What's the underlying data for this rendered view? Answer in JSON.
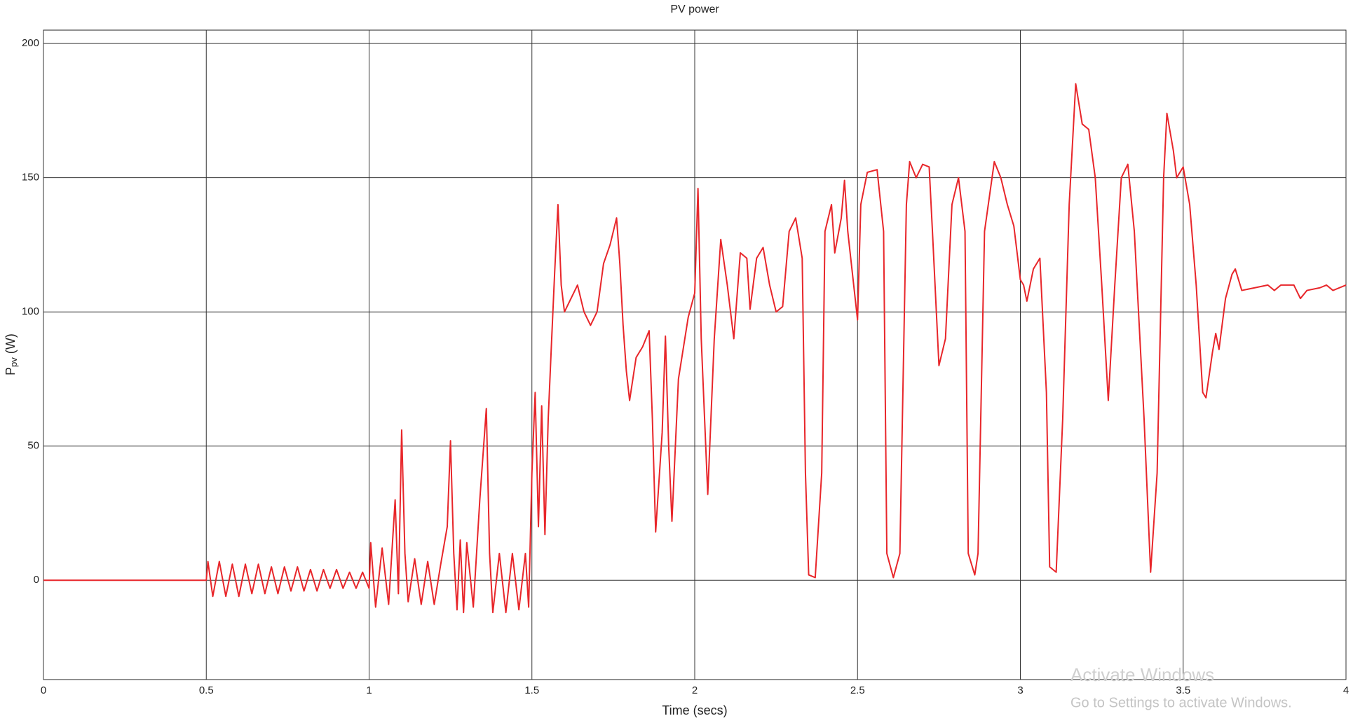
{
  "chart_data": {
    "type": "line",
    "title": "PV power",
    "xlabel": "Time (secs)",
    "ylabel": "P",
    "ylabel_subscript": "pv",
    "ylabel_unit": "(W)",
    "watermark": [
      "Activate Windows",
      "Go to Settings to activate Windows."
    ],
    "x": [
      0,
      0.5,
      0.505,
      0.52,
      0.54,
      0.56,
      0.58,
      0.6,
      0.62,
      0.64,
      0.66,
      0.68,
      0.7,
      0.72,
      0.74,
      0.76,
      0.78,
      0.8,
      0.82,
      0.84,
      0.86,
      0.88,
      0.9,
      0.92,
      0.94,
      0.96,
      0.98,
      1.0,
      1.005,
      1.02,
      1.04,
      1.06,
      1.08,
      1.09,
      1.1,
      1.11,
      1.12,
      1.14,
      1.16,
      1.18,
      1.2,
      1.22,
      1.24,
      1.25,
      1.26,
      1.27,
      1.28,
      1.29,
      1.3,
      1.32,
      1.34,
      1.36,
      1.37,
      1.38,
      1.4,
      1.42,
      1.44,
      1.46,
      1.48,
      1.49,
      1.5,
      1.51,
      1.52,
      1.53,
      1.54,
      1.55,
      1.56,
      1.57,
      1.58,
      1.59,
      1.6,
      1.62,
      1.64,
      1.66,
      1.68,
      1.7,
      1.72,
      1.74,
      1.76,
      1.77,
      1.78,
      1.79,
      1.8,
      1.82,
      1.84,
      1.86,
      1.87,
      1.88,
      1.9,
      1.91,
      1.92,
      1.93,
      1.95,
      1.98,
      2.0,
      2.01,
      2.02,
      2.04,
      2.06,
      2.08,
      2.1,
      2.12,
      2.14,
      2.16,
      2.17,
      2.19,
      2.21,
      2.23,
      2.25,
      2.27,
      2.29,
      2.31,
      2.33,
      2.34,
      2.35,
      2.37,
      2.39,
      2.4,
      2.42,
      2.43,
      2.45,
      2.46,
      2.47,
      2.49,
      2.5,
      2.51,
      2.53,
      2.56,
      2.58,
      2.59,
      2.61,
      2.63,
      2.65,
      2.66,
      2.68,
      2.7,
      2.72,
      2.73,
      2.75,
      2.77,
      2.79,
      2.81,
      2.83,
      2.84,
      2.86,
      2.87,
      2.89,
      2.92,
      2.94,
      2.96,
      2.98,
      3.0,
      3.01,
      3.02,
      3.04,
      3.06,
      3.08,
      3.09,
      3.11,
      3.13,
      3.15,
      3.17,
      3.19,
      3.21,
      3.23,
      3.25,
      3.27,
      3.29,
      3.31,
      3.33,
      3.35,
      3.38,
      3.4,
      3.42,
      3.44,
      3.45,
      3.47,
      3.48,
      3.5,
      3.52,
      3.54,
      3.56,
      3.57,
      3.59,
      3.6,
      3.61,
      3.63,
      3.65,
      3.66,
      3.68,
      3.72,
      3.76,
      3.78,
      3.8,
      3.84,
      3.86,
      3.88,
      3.92,
      3.94,
      3.96,
      4.0
    ],
    "values": [
      0,
      0,
      7,
      -6,
      7,
      -6,
      6,
      -6,
      6,
      -5,
      6,
      -5,
      5,
      -5,
      5,
      -4,
      5,
      -4,
      4,
      -4,
      4,
      -3,
      4,
      -3,
      3,
      -3,
      3,
      -3,
      14,
      -10,
      12,
      -9,
      30,
      -5,
      56,
      10,
      -8,
      8,
      -9,
      7,
      -9,
      6,
      20,
      52,
      10,
      -11,
      15,
      -12,
      14,
      -10,
      30,
      64,
      10,
      -12,
      10,
      -12,
      10,
      -11,
      10,
      -10,
      40,
      70,
      20,
      65,
      17,
      60,
      88,
      115,
      140,
      110,
      100,
      105,
      110,
      100,
      95,
      100,
      118,
      125,
      135,
      118,
      95,
      78,
      67,
      83,
      87,
      93,
      60,
      18,
      55,
      91,
      50,
      22,
      75,
      98,
      107,
      146,
      90,
      32,
      90,
      127,
      110,
      90,
      122,
      120,
      101,
      120,
      124,
      110,
      100,
      102,
      130,
      135,
      120,
      40,
      2,
      1,
      40,
      130,
      140,
      122,
      135,
      149,
      130,
      108,
      97,
      140,
      152,
      153,
      130,
      10,
      1,
      10,
      140,
      156,
      150,
      155,
      154,
      130,
      80,
      90,
      140,
      150,
      130,
      10,
      2,
      10,
      130,
      156,
      150,
      140,
      132,
      112,
      110,
      104,
      116,
      120,
      70,
      5,
      3,
      60,
      140,
      185,
      170,
      168,
      150,
      110,
      67,
      110,
      150,
      155,
      130,
      60,
      3,
      40,
      150,
      174,
      160,
      150,
      154,
      140,
      110,
      70,
      68,
      85,
      92,
      86,
      105,
      114,
      116,
      108,
      109,
      110,
      108,
      110,
      110,
      105,
      108,
      109,
      110,
      108,
      110
    ],
    "color": "#e8262a",
    "xlim": [
      0,
      4
    ],
    "xticks": [
      0,
      0.5,
      1,
      1.5,
      2,
      2.5,
      3,
      3.5,
      4
    ],
    "ylim": [
      -37,
      205
    ],
    "yticks": [
      0,
      50,
      100,
      150,
      200
    ],
    "grid": true
  }
}
